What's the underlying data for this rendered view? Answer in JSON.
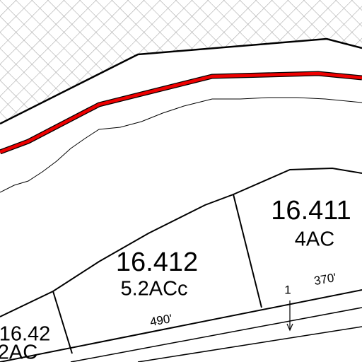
{
  "parcels": [
    {
      "id": "16.411",
      "area": "4AC",
      "frontage": "370'"
    },
    {
      "id": "16.412",
      "area": "5.2ACc",
      "frontage": "490'"
    },
    {
      "id": "16.42",
      "area": "2AC"
    }
  ],
  "markers": [
    "1"
  ]
}
